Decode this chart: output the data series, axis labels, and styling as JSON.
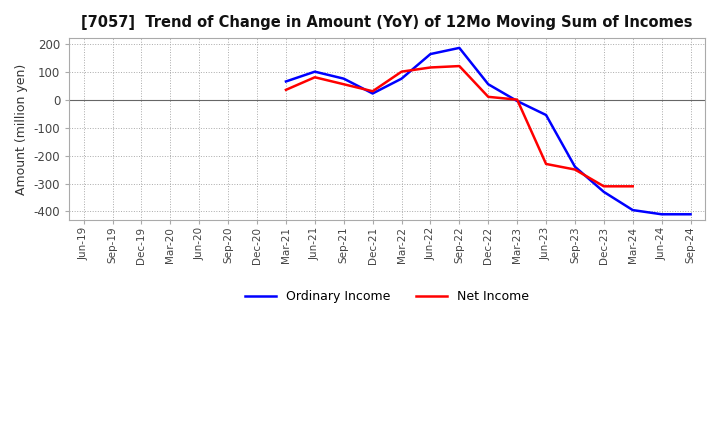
{
  "title": "[7057]  Trend of Change in Amount (YoY) of 12Mo Moving Sum of Incomes",
  "ylabel": "Amount (million yen)",
  "ylim": [
    -430,
    220
  ],
  "yticks": [
    -400,
    -300,
    -200,
    -100,
    0,
    100,
    200
  ],
  "background_color": "#ffffff",
  "grid_color": "#aaaaaa",
  "ordinary_income_color": "#0000ff",
  "net_income_color": "#ff0000",
  "x_labels": [
    "Jun-19",
    "Sep-19",
    "Dec-19",
    "Mar-20",
    "Jun-20",
    "Sep-20",
    "Dec-20",
    "Mar-21",
    "Jun-21",
    "Sep-21",
    "Dec-21",
    "Mar-22",
    "Jun-22",
    "Sep-22",
    "Dec-22",
    "Mar-23",
    "Jun-23",
    "Sep-23",
    "Dec-23",
    "Mar-24",
    "Jun-24",
    "Sep-24"
  ],
  "ordinary_income": [
    null,
    null,
    null,
    null,
    null,
    null,
    null,
    65,
    100,
    75,
    22,
    75,
    163,
    185,
    55,
    -5,
    -55,
    -240,
    -330,
    -395,
    -410,
    -410
  ],
  "net_income": [
    null,
    null,
    null,
    null,
    null,
    null,
    null,
    35,
    80,
    55,
    30,
    100,
    115,
    120,
    10,
    0,
    -230,
    -250,
    -310,
    -310,
    null,
    null
  ]
}
